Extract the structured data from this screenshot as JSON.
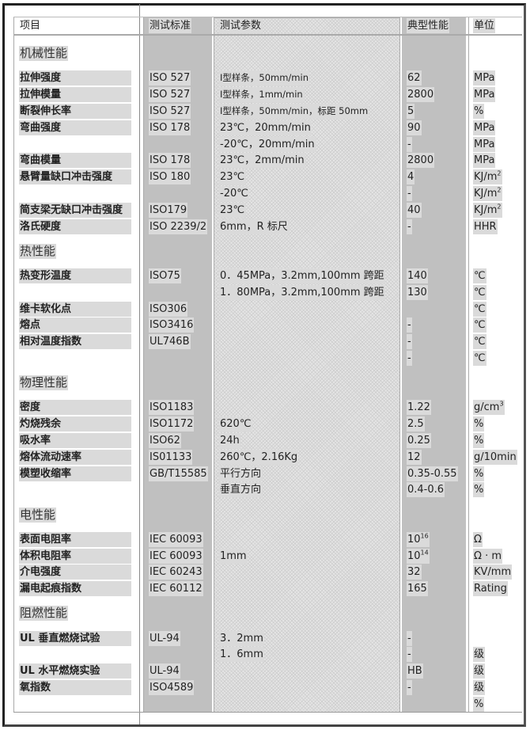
{
  "header": {
    "item": "项目",
    "standard": "测试标准",
    "params": "测试参数",
    "typical": "典型性能",
    "unit": "单位"
  },
  "rows": [
    {
      "section": "机械性能"
    },
    {
      "item": "拉伸强度",
      "std": "ISO 527",
      "param": "Ⅰ型样条，50mm/min",
      "value": "62",
      "unit": "MPa",
      "small": true
    },
    {
      "item": "拉伸模量",
      "std": "ISO 527",
      "param": "Ⅰ型样条，1mm/min",
      "value": "2800",
      "unit": "MPa",
      "small": true
    },
    {
      "item": "断裂伸长率",
      "std": "ISO 527",
      "param": "Ⅰ型样条，50mm/min，标距 50mm",
      "value": "5",
      "unit": "%",
      "small": true
    },
    {
      "item": "弯曲强度",
      "std": "ISO 178",
      "param": "23℃，20mm/min",
      "value": "90",
      "unit": "MPa"
    },
    {
      "item": "",
      "std": "",
      "param": "-20℃，20mm/min",
      "value": "-",
      "unit": "MPa"
    },
    {
      "item": "弯曲模量",
      "std": "ISO 178",
      "param": "23℃，2mm/min",
      "value": "2800",
      "unit": "MPa"
    },
    {
      "item": "悬臂量缺口冲击强度",
      "std": "ISO 180",
      "param": "23℃",
      "value": "4",
      "unit": "KJ/m",
      "unit_sup": "2"
    },
    {
      "item": "",
      "std": "",
      "param": "-20℃",
      "value": "-",
      "unit": "KJ/m",
      "unit_sup": "2"
    },
    {
      "item": "简支梁无缺口冲击强度",
      "std": "ISO179",
      "param": "23℃",
      "value": "40",
      "unit": "KJ/m",
      "unit_sup": "2"
    },
    {
      "item": "洛氏硬度",
      "std": "ISO 2239/2",
      "param": "6mm，R 标尺",
      "value": "-",
      "unit": "HHR"
    },
    {
      "section": "热性能"
    },
    {
      "item": "热变形温度",
      "std": "ISO75",
      "param": "0．45MPa，3.2mm,100mm 跨距",
      "value": "140",
      "unit": "℃"
    },
    {
      "item": "",
      "std": "",
      "param": "1．80MPa，3.2mm,100mm 跨距",
      "value": "130",
      "unit": "℃"
    },
    {
      "item": "维卡软化点",
      "std": "ISO306",
      "param": "",
      "value": "",
      "unit": "℃"
    },
    {
      "item": "熔点",
      "std": "ISO3416",
      "param": "",
      "value": "-",
      "unit": "℃"
    },
    {
      "item": "相对温度指数",
      "std": "UL746B",
      "param": "",
      "value": "-",
      "unit": "℃"
    },
    {
      "item": "",
      "std": "",
      "param": "",
      "value": "-",
      "unit": "℃"
    },
    {
      "section": "物理性能"
    },
    {
      "item": "密度",
      "std": "ISO1183",
      "param": "",
      "value": "1.22",
      "unit": "g/cm",
      "unit_sup": "3"
    },
    {
      "item": "灼烧残余",
      "std": "ISO1172",
      "param": "620℃",
      "value": "2.5",
      "unit": "%"
    },
    {
      "item": "吸水率",
      "std": "ISO62",
      "param": "24h",
      "value": "0.25",
      "unit": "%"
    },
    {
      "item": "熔体流动速率",
      "std": "IS01133",
      "param": "260℃，2.16Kg",
      "value": "12",
      "unit": "g/10min"
    },
    {
      "item": "模塑收缩率",
      "std": "GB/T15585",
      "param": "平行方向",
      "value": "0.35-0.55",
      "unit": "%"
    },
    {
      "item": "",
      "std": "",
      "param": "垂直方向",
      "value": "0.4-0.6",
      "unit": "%"
    },
    {
      "section": "电性能"
    },
    {
      "item": "表面电阻率",
      "std": "IEC 60093",
      "param": "",
      "value": "10",
      "value_sup": "16",
      "unit": "Ω"
    },
    {
      "item": "体积电阻率",
      "std": "IEC 60093",
      "param": "1mm",
      "value": "10",
      "value_sup": "14",
      "unit": "Ω · m"
    },
    {
      "item": "介电强度",
      "std": "IEC 60243",
      "param": "",
      "value": "32",
      "unit": "KV/mm"
    },
    {
      "item": "漏电起痕指数",
      "std": "IEC 60112",
      "param": "",
      "value": "165",
      "unit": "Rating"
    },
    {
      "section": "阻燃性能"
    },
    {
      "item": "UL 垂直燃烧试验",
      "std": "UL-94",
      "param": "3．2mm",
      "value": "-",
      "unit": ""
    },
    {
      "item": "",
      "std": "",
      "param": "1．6mm",
      "value": "-",
      "unit": "级"
    },
    {
      "item": "UL 水平燃烧实验",
      "std": "UL-94",
      "param": "",
      "value": "HB",
      "unit": "级"
    },
    {
      "item": "氧指数",
      "std": "ISO4589",
      "param": "",
      "value": "-",
      "unit": "级"
    },
    {
      "item": "",
      "std": "",
      "param": "",
      "value": "",
      "unit": "%"
    }
  ]
}
